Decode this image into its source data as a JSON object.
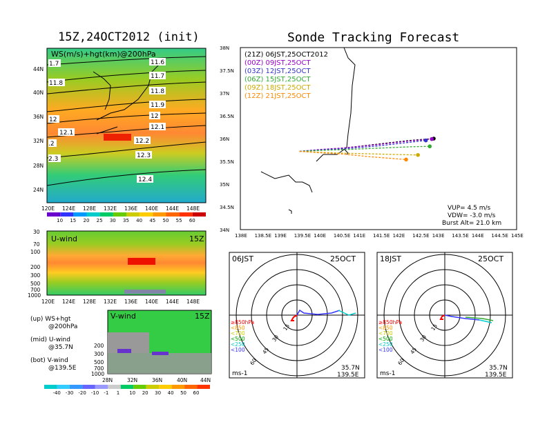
{
  "left_title": "15Z,24OCT2012 (init)",
  "right_title": "Sonde Tracking Forecast",
  "map_panel": {
    "label": "WS(m/s)+hgt(km)@200hPa",
    "lon_ticks": [
      "120E",
      "124E",
      "128E",
      "132E",
      "136E",
      "140E",
      "144E",
      "148E"
    ],
    "lat_ticks": [
      "44N",
      "40N",
      "36N",
      "32N",
      "28N",
      "24N"
    ],
    "contour_labels": [
      "11.6",
      "11.7",
      "11.8",
      "11.9",
      "12",
      "12.1",
      "12.2",
      "12.3",
      "12.4",
      "1.7",
      "11.8",
      "12",
      "12.1",
      ".2",
      "2.3"
    ],
    "colorbar_ticks": [
      "10",
      "15",
      "20",
      "25",
      "30",
      "35",
      "40",
      "45",
      "50",
      "55",
      "60"
    ],
    "colorbar_colors": [
      "#6a00cc",
      "#3333ff",
      "#0099ff",
      "#00cccc",
      "#00cc66",
      "#66cc00",
      "#cccc00",
      "#ffcc00",
      "#ff9900",
      "#ff6600",
      "#ff3300",
      "#cc0000"
    ]
  },
  "u_panel": {
    "label": "U-wind",
    "time": "15Z",
    "y_ticks": [
      "30",
      "70",
      "100",
      "200",
      "300",
      "500",
      "700",
      "1000"
    ],
    "x_ticks": [
      "120E",
      "124E",
      "128E",
      "132E",
      "136E",
      "140E",
      "144E",
      "148E"
    ]
  },
  "v_panel": {
    "label": "V-wind",
    "time": "15Z",
    "y_ticks": [
      "200",
      "300",
      "500",
      "700",
      "1000"
    ],
    "x_ticks": [
      "28N",
      "32N",
      "36N",
      "40N",
      "44N"
    ]
  },
  "legend_text": {
    "up": "(up) WS+hgt",
    "up2": "@200hPa",
    "mid": "(mid) U-wind",
    "mid2": "@35.7N",
    "bot": "(bot) V-wind",
    "bot2": "@139.5E"
  },
  "bottom_colorbar": {
    "ticks": [
      "-40",
      "-30",
      "-20",
      "-10",
      "-1",
      "1",
      "10",
      "20",
      "30",
      "40",
      "50",
      "60"
    ],
    "colors": [
      "#00cccc",
      "#33ccff",
      "#3399ff",
      "#6666ff",
      "#9999ff",
      "#cccccc",
      "#00cc66",
      "#66cc00",
      "#cccc00",
      "#ffcc00",
      "#ff9900",
      "#ff6600",
      "#ff3300"
    ]
  },
  "track_panel": {
    "legend": [
      {
        "text": "(21Z) 06JST,25OCT2012",
        "color": "#000000"
      },
      {
        "text": "(00Z) 09JST,25OCT",
        "color": "#9900cc"
      },
      {
        "text": "(03Z) 12JST,25OCT",
        "color": "#3333cc"
      },
      {
        "text": "(06Z) 15JST,25OCT",
        "color": "#33aa33"
      },
      {
        "text": "(09Z) 18JST,25OCT",
        "color": "#ccaa00"
      },
      {
        "text": "(12Z) 21JST,25OCT",
        "color": "#ff8800"
      }
    ],
    "lat_ticks": [
      "38N",
      "37.5N",
      "37N",
      "36.5N",
      "36N",
      "35.5N",
      "35N",
      "34.5N",
      "34N"
    ],
    "lon_ticks": [
      "138E",
      "138.5E",
      "139E",
      "139.5E",
      "140E",
      "140.5E",
      "141E",
      "141.5E",
      "142E",
      "142.5E",
      "143E",
      "143.5E",
      "144E",
      "144.5E",
      "145E"
    ],
    "info": [
      "VUP= 4.5 m/s",
      "VDW= -3.0 m/s",
      "Burst Alt= 21.0 km"
    ]
  },
  "chart_data": {
    "type": "line",
    "title": "Sonde Tracking Forecast",
    "xlabel": "",
    "ylabel": "",
    "xlim": [
      138,
      145
    ],
    "ylim": [
      34,
      38
    ],
    "series": [
      {
        "name": "(21Z) 06JST,25OCT2012",
        "color": "#000000",
        "x": [
          139.5,
          140.0,
          140.7,
          141.5,
          142.3,
          142.9
        ],
        "y": [
          35.72,
          35.75,
          35.8,
          35.88,
          35.96,
          36.0
        ]
      },
      {
        "name": "(00Z) 09JST,25OCT",
        "color": "#9900cc",
        "x": [
          139.5,
          140.0,
          140.7,
          141.5,
          142.3,
          142.85
        ],
        "y": [
          35.72,
          35.76,
          35.8,
          35.87,
          35.95,
          35.99
        ]
      },
      {
        "name": "(03Z) 12JST,25OCT",
        "color": "#3333cc",
        "x": [
          139.5,
          140.0,
          140.7,
          141.5,
          142.3,
          142.7
        ],
        "y": [
          35.72,
          35.75,
          35.78,
          35.84,
          35.92,
          35.96
        ]
      },
      {
        "name": "(06Z) 15JST,25OCT",
        "color": "#33aa33",
        "x": [
          139.5,
          140.0,
          140.7,
          141.5,
          142.3,
          142.8
        ],
        "y": [
          35.72,
          35.74,
          35.76,
          35.79,
          35.82,
          35.83
        ]
      },
      {
        "name": "(09Z) 18JST,25OCT",
        "color": "#ccaa00",
        "x": [
          139.5,
          140.0,
          140.6,
          141.5,
          142.5
        ],
        "y": [
          35.72,
          35.7,
          35.68,
          35.66,
          35.64
        ]
      },
      {
        "name": "(12Z) 21JST,25OCT",
        "color": "#ff8800",
        "x": [
          139.5,
          140.0,
          140.6,
          141.3,
          142.2
        ],
        "y": [
          35.72,
          35.69,
          35.66,
          35.6,
          35.54
        ]
      }
    ]
  },
  "hodo_left": {
    "time": "06JST",
    "date": "25OCT",
    "ring_labels": [
      "15",
      "30",
      "45",
      "60"
    ],
    "legend": [
      {
        "text": "≥850hPa",
        "color": "#ff0000"
      },
      {
        "text": "<850",
        "color": "#ff9900"
      },
      {
        "text": "<700",
        "color": "#cccc00"
      },
      {
        "text": "<500",
        "color": "#00aa00"
      },
      {
        "text": "<250",
        "color": "#00cccc"
      },
      {
        "text": "<100",
        "color": "#3333ff"
      }
    ],
    "units": "ms-1",
    "loc1": "35.7N",
    "loc2": "139.5E"
  },
  "hodo_right": {
    "time": "18JST",
    "date": "25OCT",
    "ring_labels": [
      "15",
      "30",
      "45",
      "60"
    ],
    "legend": [
      {
        "text": "≥850hPa",
        "color": "#ff0000"
      },
      {
        "text": "<850",
        "color": "#ff9900"
      },
      {
        "text": "<700",
        "color": "#cccc00"
      },
      {
        "text": "<500",
        "color": "#00aa00"
      },
      {
        "text": "<250",
        "color": "#00cccc"
      },
      {
        "text": "<100",
        "color": "#3333ff"
      }
    ],
    "units": "ms-1",
    "loc1": "35.7N",
    "loc2": "139.5E"
  }
}
